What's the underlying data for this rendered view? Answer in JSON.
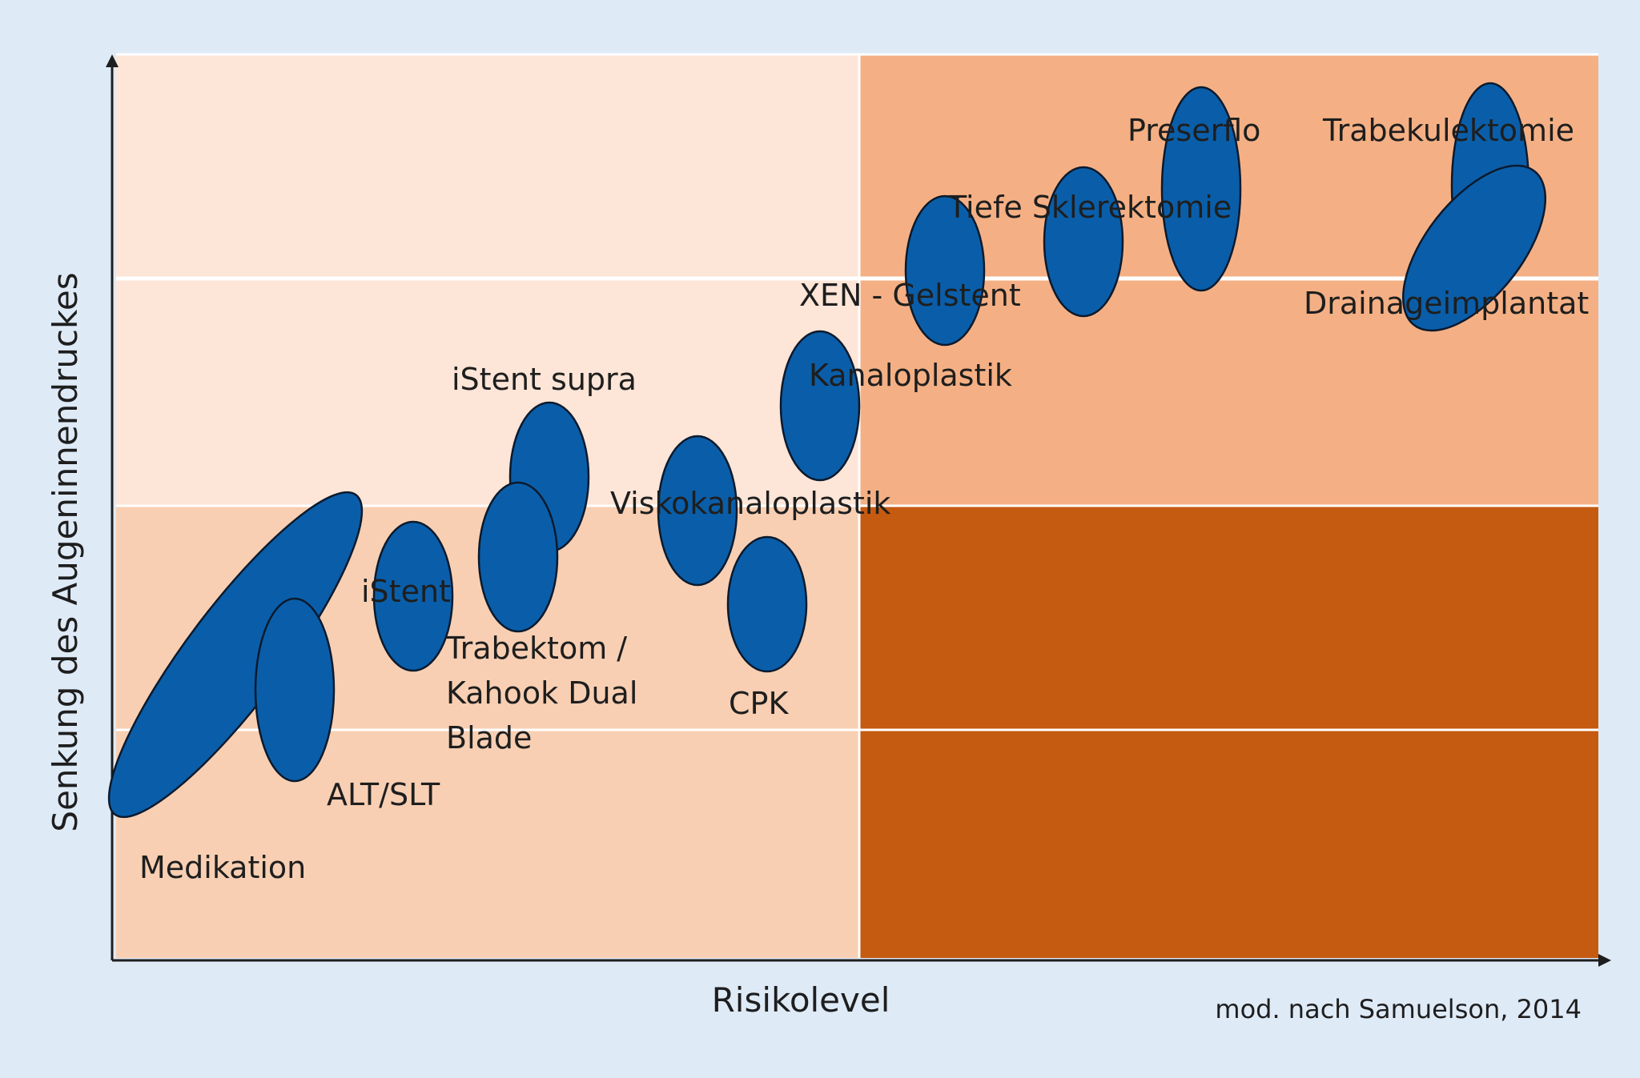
{
  "diagram": {
    "xlabel": "Risikolevel",
    "ylabel": "Senkung des Augeninnendruckes",
    "credit": "mod. nach Samuelson, 2014",
    "colors": {
      "page_background": "#dfeaf7",
      "zone_lightest": "#fde5d7",
      "zone_light": "#f8cfb3",
      "zone_medium": "#f4b084",
      "zone_dark": "#c55a11",
      "blob_fill": "#0a5ea9",
      "grid_line": "#ffffff"
    },
    "procedures": [
      {
        "id": "medikation",
        "label": "Medikation"
      },
      {
        "id": "alt-slt",
        "label": "ALT/SLT"
      },
      {
        "id": "istent",
        "label": "iStent"
      },
      {
        "id": "istent-supra",
        "label": "iStent supra"
      },
      {
        "id": "trabektom",
        "label": "Trabektom / Kahook Dual Blade",
        "lines": [
          "Trabektom /",
          "Kahook Dual",
          "Blade"
        ]
      },
      {
        "id": "viskokanaloplastik",
        "label": "Viskokanaloplastik"
      },
      {
        "id": "cpk",
        "label": "CPK"
      },
      {
        "id": "kanaloplastik",
        "label": "Kanaloplastik"
      },
      {
        "id": "xen-gelstent",
        "label": "XEN - Gelstent"
      },
      {
        "id": "tiefe-sklerektomie",
        "label": "Tiefe Sklerektomie"
      },
      {
        "id": "preserflo",
        "label": "Preserflo"
      },
      {
        "id": "trabekulektomie",
        "label": "Trabekulektomie"
      },
      {
        "id": "drainageimplantat",
        "label": "Drainageimplantat"
      }
    ]
  }
}
